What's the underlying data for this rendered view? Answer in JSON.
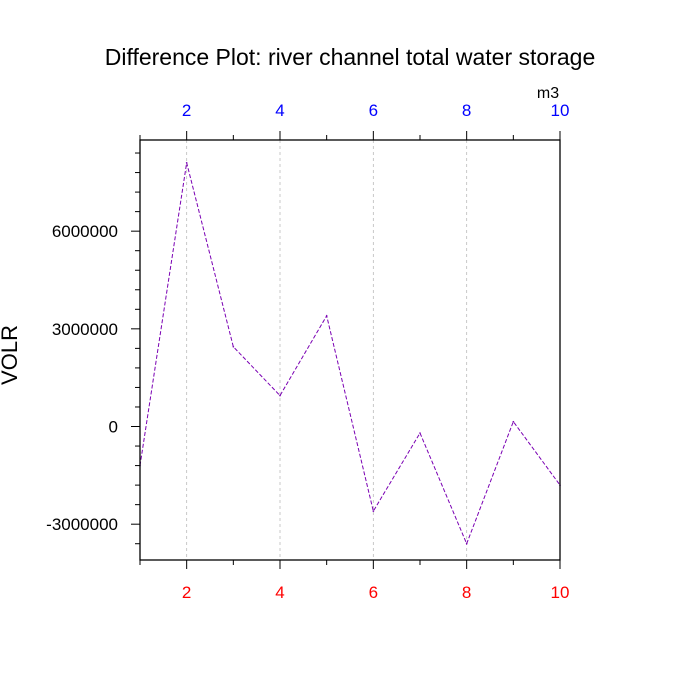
{
  "chart_data": {
    "type": "line",
    "title": "Difference Plot: river channel total water storage",
    "ylabel": "VOLR",
    "units": "m3",
    "x": [
      1,
      2,
      3,
      4,
      5,
      6,
      7,
      8,
      9,
      10
    ],
    "series": [
      {
        "values": [
          -1200000,
          8100000,
          2450000,
          950000,
          3400000,
          -2600000,
          -200000,
          -3600000,
          150000,
          -1800000
        ]
      }
    ],
    "xlim": [
      1,
      10
    ],
    "ylim": [
      -4100000,
      8800000
    ],
    "x_ticks": [
      2,
      4,
      6,
      8,
      10
    ],
    "x_tick_labels": [
      "2",
      "4",
      "6",
      "8",
      "10"
    ],
    "y_ticks": [
      -3000000,
      0,
      3000000,
      6000000
    ],
    "y_tick_labels": [
      "-3000000",
      "0",
      "3000000",
      "6000000"
    ],
    "grid": "vertical dashed at x ticks",
    "colors": {
      "line": "#7a00b3",
      "bottom_tick_labels": "#ff0000",
      "top_tick_labels": "#0000ff",
      "grid": "#bbbbbb",
      "axes": "#000000"
    }
  }
}
